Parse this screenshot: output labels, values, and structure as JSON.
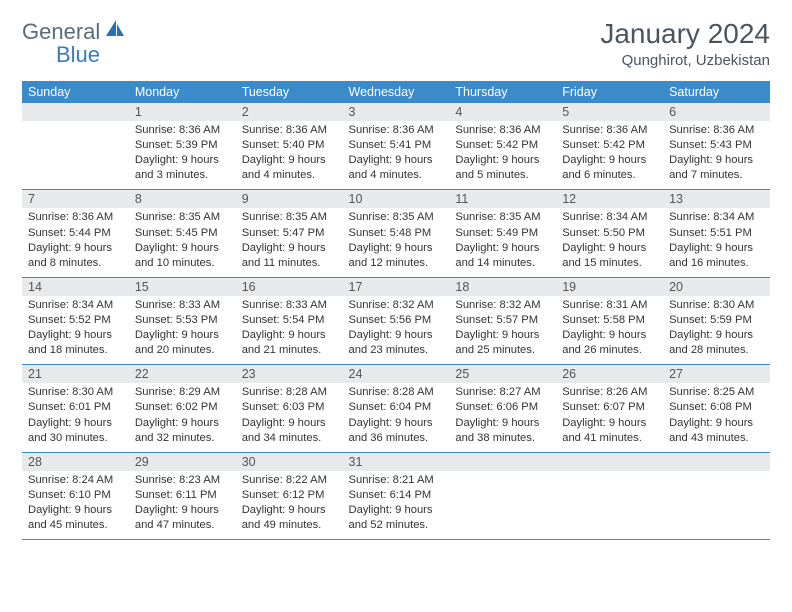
{
  "logo": {
    "text_left": "General",
    "text_right": "Blue"
  },
  "title": "January 2024",
  "location": "Qunghirot, Uzbekistan",
  "theme": {
    "header_bg": "#3a8bc9",
    "header_fg": "#ffffff",
    "daynum_bg": "#e8e9ea",
    "row_border": "#3a8bc9",
    "logo_gray": "#5c6b7a",
    "logo_blue": "#3a7bbf",
    "title_color": "#4a5560",
    "body_fontsize": 11.2
  },
  "weekdays": [
    "Sunday",
    "Monday",
    "Tuesday",
    "Wednesday",
    "Thursday",
    "Friday",
    "Saturday"
  ],
  "weeks": [
    [
      {
        "n": "",
        "lines": []
      },
      {
        "n": "1",
        "lines": [
          "Sunrise: 8:36 AM",
          "Sunset: 5:39 PM",
          "Daylight: 9 hours",
          "and 3 minutes."
        ]
      },
      {
        "n": "2",
        "lines": [
          "Sunrise: 8:36 AM",
          "Sunset: 5:40 PM",
          "Daylight: 9 hours",
          "and 4 minutes."
        ]
      },
      {
        "n": "3",
        "lines": [
          "Sunrise: 8:36 AM",
          "Sunset: 5:41 PM",
          "Daylight: 9 hours",
          "and 4 minutes."
        ]
      },
      {
        "n": "4",
        "lines": [
          "Sunrise: 8:36 AM",
          "Sunset: 5:42 PM",
          "Daylight: 9 hours",
          "and 5 minutes."
        ]
      },
      {
        "n": "5",
        "lines": [
          "Sunrise: 8:36 AM",
          "Sunset: 5:42 PM",
          "Daylight: 9 hours",
          "and 6 minutes."
        ]
      },
      {
        "n": "6",
        "lines": [
          "Sunrise: 8:36 AM",
          "Sunset: 5:43 PM",
          "Daylight: 9 hours",
          "and 7 minutes."
        ]
      }
    ],
    [
      {
        "n": "7",
        "lines": [
          "Sunrise: 8:36 AM",
          "Sunset: 5:44 PM",
          "Daylight: 9 hours",
          "and 8 minutes."
        ]
      },
      {
        "n": "8",
        "lines": [
          "Sunrise: 8:35 AM",
          "Sunset: 5:45 PM",
          "Daylight: 9 hours",
          "and 10 minutes."
        ]
      },
      {
        "n": "9",
        "lines": [
          "Sunrise: 8:35 AM",
          "Sunset: 5:47 PM",
          "Daylight: 9 hours",
          "and 11 minutes."
        ]
      },
      {
        "n": "10",
        "lines": [
          "Sunrise: 8:35 AM",
          "Sunset: 5:48 PM",
          "Daylight: 9 hours",
          "and 12 minutes."
        ]
      },
      {
        "n": "11",
        "lines": [
          "Sunrise: 8:35 AM",
          "Sunset: 5:49 PM",
          "Daylight: 9 hours",
          "and 14 minutes."
        ]
      },
      {
        "n": "12",
        "lines": [
          "Sunrise: 8:34 AM",
          "Sunset: 5:50 PM",
          "Daylight: 9 hours",
          "and 15 minutes."
        ]
      },
      {
        "n": "13",
        "lines": [
          "Sunrise: 8:34 AM",
          "Sunset: 5:51 PM",
          "Daylight: 9 hours",
          "and 16 minutes."
        ]
      }
    ],
    [
      {
        "n": "14",
        "lines": [
          "Sunrise: 8:34 AM",
          "Sunset: 5:52 PM",
          "Daylight: 9 hours",
          "and 18 minutes."
        ]
      },
      {
        "n": "15",
        "lines": [
          "Sunrise: 8:33 AM",
          "Sunset: 5:53 PM",
          "Daylight: 9 hours",
          "and 20 minutes."
        ]
      },
      {
        "n": "16",
        "lines": [
          "Sunrise: 8:33 AM",
          "Sunset: 5:54 PM",
          "Daylight: 9 hours",
          "and 21 minutes."
        ]
      },
      {
        "n": "17",
        "lines": [
          "Sunrise: 8:32 AM",
          "Sunset: 5:56 PM",
          "Daylight: 9 hours",
          "and 23 minutes."
        ]
      },
      {
        "n": "18",
        "lines": [
          "Sunrise: 8:32 AM",
          "Sunset: 5:57 PM",
          "Daylight: 9 hours",
          "and 25 minutes."
        ]
      },
      {
        "n": "19",
        "lines": [
          "Sunrise: 8:31 AM",
          "Sunset: 5:58 PM",
          "Daylight: 9 hours",
          "and 26 minutes."
        ]
      },
      {
        "n": "20",
        "lines": [
          "Sunrise: 8:30 AM",
          "Sunset: 5:59 PM",
          "Daylight: 9 hours",
          "and 28 minutes."
        ]
      }
    ],
    [
      {
        "n": "21",
        "lines": [
          "Sunrise: 8:30 AM",
          "Sunset: 6:01 PM",
          "Daylight: 9 hours",
          "and 30 minutes."
        ]
      },
      {
        "n": "22",
        "lines": [
          "Sunrise: 8:29 AM",
          "Sunset: 6:02 PM",
          "Daylight: 9 hours",
          "and 32 minutes."
        ]
      },
      {
        "n": "23",
        "lines": [
          "Sunrise: 8:28 AM",
          "Sunset: 6:03 PM",
          "Daylight: 9 hours",
          "and 34 minutes."
        ]
      },
      {
        "n": "24",
        "lines": [
          "Sunrise: 8:28 AM",
          "Sunset: 6:04 PM",
          "Daylight: 9 hours",
          "and 36 minutes."
        ]
      },
      {
        "n": "25",
        "lines": [
          "Sunrise: 8:27 AM",
          "Sunset: 6:06 PM",
          "Daylight: 9 hours",
          "and 38 minutes."
        ]
      },
      {
        "n": "26",
        "lines": [
          "Sunrise: 8:26 AM",
          "Sunset: 6:07 PM",
          "Daylight: 9 hours",
          "and 41 minutes."
        ]
      },
      {
        "n": "27",
        "lines": [
          "Sunrise: 8:25 AM",
          "Sunset: 6:08 PM",
          "Daylight: 9 hours",
          "and 43 minutes."
        ]
      }
    ],
    [
      {
        "n": "28",
        "lines": [
          "Sunrise: 8:24 AM",
          "Sunset: 6:10 PM",
          "Daylight: 9 hours",
          "and 45 minutes."
        ]
      },
      {
        "n": "29",
        "lines": [
          "Sunrise: 8:23 AM",
          "Sunset: 6:11 PM",
          "Daylight: 9 hours",
          "and 47 minutes."
        ]
      },
      {
        "n": "30",
        "lines": [
          "Sunrise: 8:22 AM",
          "Sunset: 6:12 PM",
          "Daylight: 9 hours",
          "and 49 minutes."
        ]
      },
      {
        "n": "31",
        "lines": [
          "Sunrise: 8:21 AM",
          "Sunset: 6:14 PM",
          "Daylight: 9 hours",
          "and 52 minutes."
        ]
      },
      {
        "n": "",
        "lines": []
      },
      {
        "n": "",
        "lines": []
      },
      {
        "n": "",
        "lines": []
      }
    ]
  ]
}
